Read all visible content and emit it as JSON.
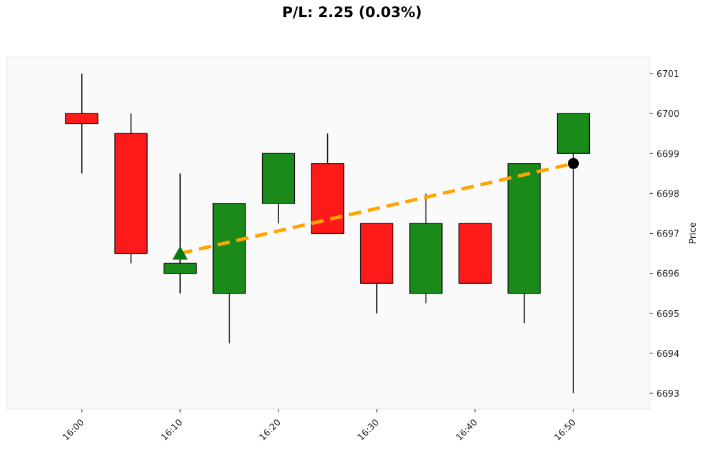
{
  "chart_data": {
    "type": "candlestick",
    "title": "P/L: 2.25 (0.03%)",
    "ylabel": "Price",
    "xlabel": "",
    "y_axis_position": "right",
    "ylim": [
      6692.6,
      6701.4
    ],
    "y_ticks": [
      6693,
      6694,
      6695,
      6696,
      6697,
      6698,
      6699,
      6700,
      6701
    ],
    "x_ticks": [
      "16:00",
      "16:10",
      "16:20",
      "16:30",
      "16:40",
      "16:50"
    ],
    "grid": false,
    "colors": {
      "up": "#1a8a1a",
      "down": "#ff1a1a",
      "trade_line": "#ffa500",
      "entry_marker": "#0a7a0a",
      "exit_marker": "#000000",
      "plot_bg": "#fafafa"
    },
    "candles": [
      {
        "time": "16:00",
        "open": 6700.0,
        "high": 6701.0,
        "low": 6698.5,
        "close": 6699.75
      },
      {
        "time": "16:05",
        "open": 6699.5,
        "high": 6700.0,
        "low": 6696.25,
        "close": 6696.5
      },
      {
        "time": "16:10",
        "open": 6696.0,
        "high": 6698.5,
        "low": 6695.5,
        "close": 6696.25
      },
      {
        "time": "16:15",
        "open": 6695.5,
        "high": 6697.75,
        "low": 6694.25,
        "close": 6697.75
      },
      {
        "time": "16:20",
        "open": 6697.75,
        "high": 6699.0,
        "low": 6697.25,
        "close": 6699.0
      },
      {
        "time": "16:25",
        "open": 6698.75,
        "high": 6699.5,
        "low": 6697.0,
        "close": 6697.0
      },
      {
        "time": "16:30",
        "open": 6697.25,
        "high": 6697.25,
        "low": 6695.0,
        "close": 6695.75
      },
      {
        "time": "16:35",
        "open": 6695.5,
        "high": 6698.0,
        "low": 6695.25,
        "close": 6697.25
      },
      {
        "time": "16:40",
        "open": 6697.25,
        "high": 6697.25,
        "low": 6695.75,
        "close": 6695.75
      },
      {
        "time": "16:45",
        "open": 6695.5,
        "high": 6698.75,
        "low": 6694.75,
        "close": 6698.75
      },
      {
        "time": "16:50",
        "open": 6699.0,
        "high": 6700.0,
        "low": 6693.0,
        "close": 6700.0
      }
    ],
    "trade": {
      "entry": {
        "time": "16:10",
        "price": 6696.5,
        "marker": "triangle-up"
      },
      "exit": {
        "time": "16:50",
        "price": 6698.75,
        "marker": "circle"
      },
      "line_style": "dashed"
    }
  }
}
